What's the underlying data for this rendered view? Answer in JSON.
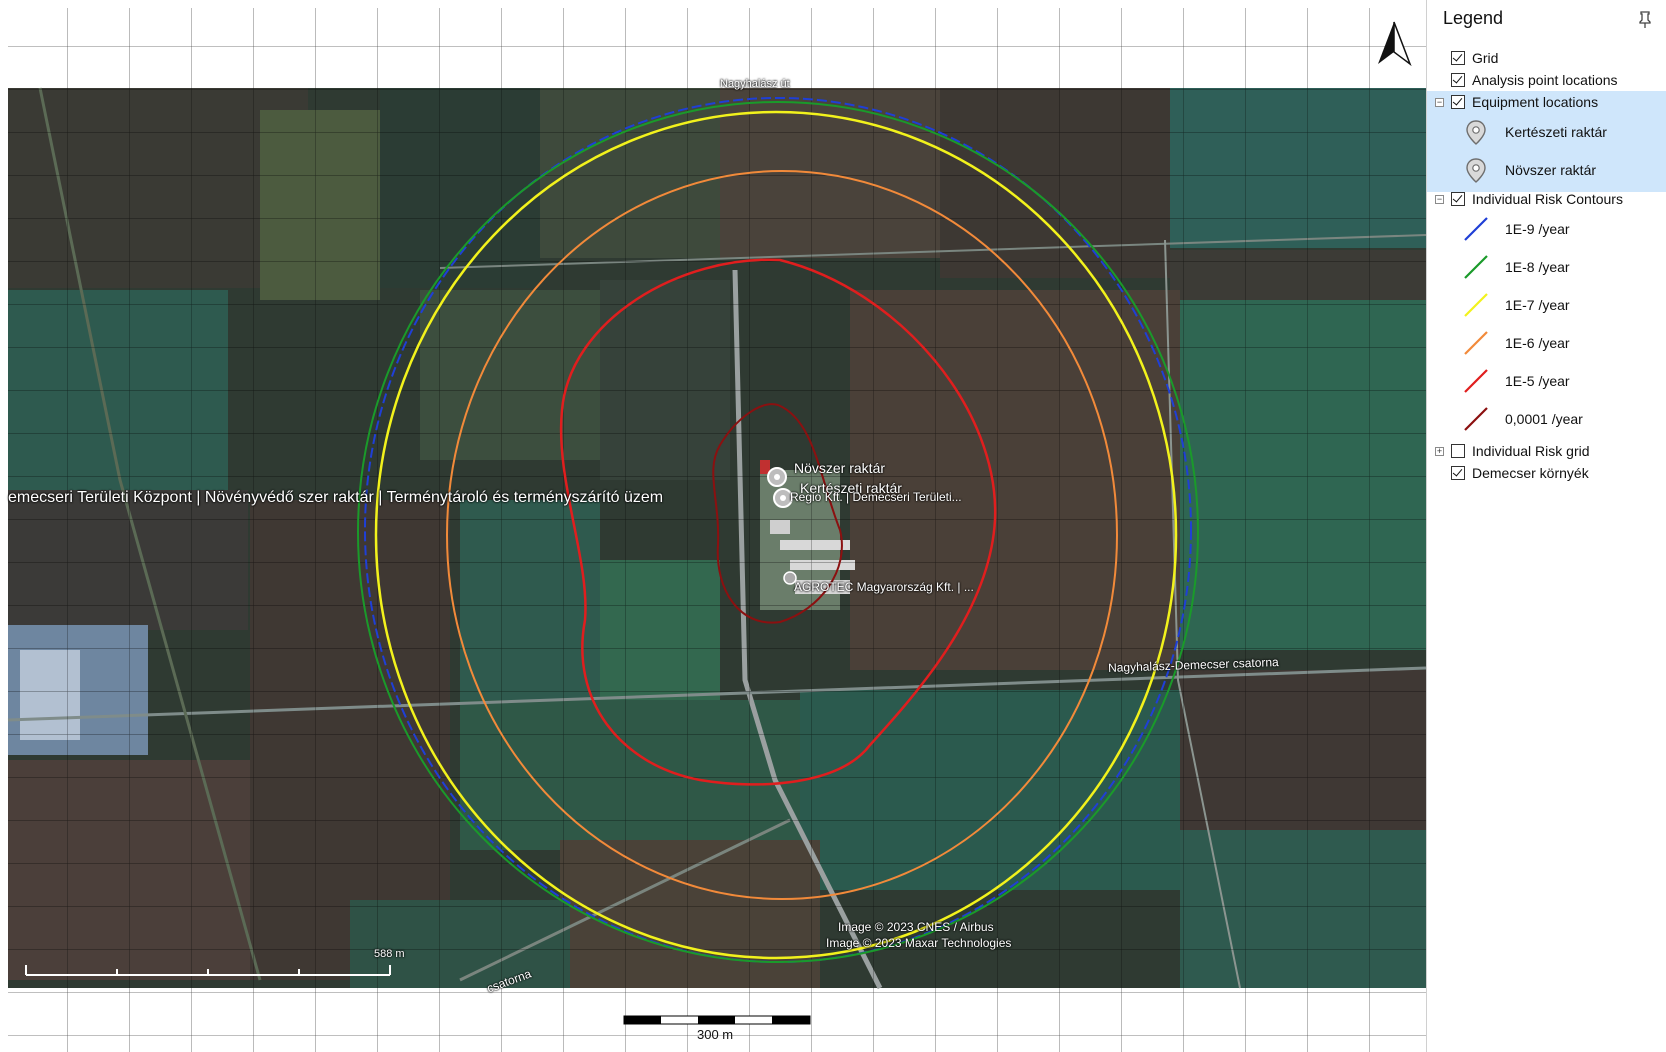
{
  "legend": {
    "title": "Legend",
    "items": {
      "grid": {
        "label": "Grid",
        "checked": true
      },
      "analysis_points": {
        "label": "Analysis point locations",
        "checked": true
      },
      "equipment": {
        "label": "Equipment locations",
        "checked": true,
        "expanded": true,
        "children": [
          "Kertészeti raktár",
          "Növszer raktár"
        ]
      },
      "risk_contours": {
        "label": "Individual Risk Contours",
        "checked": true,
        "expanded": true,
        "children": [
          {
            "label": "1E-9 /year",
            "color": "#1f3fd6"
          },
          {
            "label": "1E-8 /year",
            "color": "#1a9a2a"
          },
          {
            "label": "1E-7 /year",
            "color": "#f2f21c"
          },
          {
            "label": "1E-6 /year",
            "color": "#f28a3a"
          },
          {
            "label": "1E-5 /year",
            "color": "#e01e1e"
          },
          {
            "label": "0,0001 /year",
            "color": "#8b1010"
          }
        ]
      },
      "risk_grid": {
        "label": "Individual Risk grid",
        "checked": false,
        "expanded": false
      },
      "basemap": {
        "label": "Demecser környék",
        "checked": true
      }
    }
  },
  "map": {
    "north_arrow": "north-arrow-icon",
    "scale_bar_label": "300 m",
    "inner_scale_label": "588 m",
    "labels": {
      "equipment_1": "Növszer raktár",
      "equipment_2": "Kertészeti raktár",
      "place_long": "emecseri Területi Központ | Növényvédő szer raktár | Terménytároló és terményszárító üzem",
      "place_short": "Regio Kft. | Demecseri Területi...",
      "company": "AGROTEC Magyarország Kft. | ...",
      "road": "Nagyhalász-Demecser csatorna",
      "canal": "csatorna",
      "top_label": "Nagyhalász út",
      "credit_1": "Image © 2023 CNES / Airbus",
      "credit_2": "Image © 2023 Maxar Technologies"
    }
  }
}
